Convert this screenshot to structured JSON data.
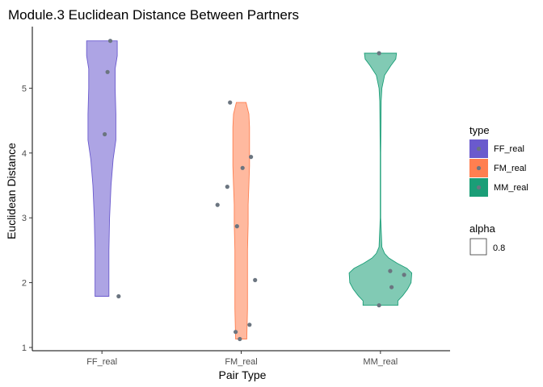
{
  "chart_data": {
    "type": "violin",
    "title": "Module.3 Euclidean Distance Between Partners",
    "xlabel": "Pair Type",
    "ylabel": "Euclidean Distance",
    "categories": [
      "FF_real",
      "FM_real",
      "MM_real"
    ],
    "ylim": [
      0.95,
      5.95
    ],
    "yticks": [
      1,
      2,
      3,
      4,
      5
    ],
    "grid": false,
    "legend_position": "right",
    "legend": {
      "title": "type",
      "entries": [
        "FF_real",
        "FM_real",
        "MM_real"
      ]
    },
    "alpha_legend": {
      "title": "alpha",
      "entries": [
        "0.8"
      ]
    },
    "series": [
      {
        "name": "FF_real",
        "color": "#6a5acd",
        "points": [
          {
            "x": 0.06,
            "y": 5.73
          },
          {
            "x": 0.04,
            "y": 5.25
          },
          {
            "x": 0.02,
            "y": 4.29
          },
          {
            "x": 0.12,
            "y": 1.79
          }
        ]
      },
      {
        "name": "FM_real",
        "color": "#ff7f50",
        "points": [
          {
            "x": -0.08,
            "y": 4.78
          },
          {
            "x": -0.1,
            "y": 3.48
          },
          {
            "x": -0.17,
            "y": 3.2
          },
          {
            "x": 0.07,
            "y": 3.94
          },
          {
            "x": 0.01,
            "y": 3.77
          },
          {
            "x": -0.03,
            "y": 2.87
          },
          {
            "x": 0.1,
            "y": 2.04
          },
          {
            "x": 0.06,
            "y": 1.35
          },
          {
            "x": -0.04,
            "y": 1.24
          },
          {
            "x": -0.01,
            "y": 1.13
          }
        ]
      },
      {
        "name": "MM_real",
        "color": "#1a9e77",
        "points": [
          {
            "x": -0.01,
            "y": 5.54
          },
          {
            "x": 0.07,
            "y": 2.18
          },
          {
            "x": 0.17,
            "y": 2.12
          },
          {
            "x": 0.08,
            "y": 1.93
          },
          {
            "x": -0.01,
            "y": 1.65
          }
        ]
      }
    ],
    "violins": [
      {
        "name": "FF_real",
        "profile": [
          [
            1.79,
            0.1
          ],
          [
            2.5,
            0.1
          ],
          [
            3.0,
            0.11
          ],
          [
            3.5,
            0.13
          ],
          [
            3.9,
            0.16
          ],
          [
            4.2,
            0.2
          ],
          [
            4.6,
            0.2
          ],
          [
            5.0,
            0.19
          ],
          [
            5.3,
            0.19
          ],
          [
            5.5,
            0.22
          ],
          [
            5.73,
            0.22
          ]
        ]
      },
      {
        "name": "FM_real",
        "profile": [
          [
            1.13,
            0.08
          ],
          [
            1.6,
            0.09
          ],
          [
            2.0,
            0.09
          ],
          [
            2.5,
            0.09
          ],
          [
            2.9,
            0.1
          ],
          [
            3.2,
            0.1
          ],
          [
            3.5,
            0.11
          ],
          [
            3.8,
            0.12
          ],
          [
            4.1,
            0.12
          ],
          [
            4.4,
            0.12
          ],
          [
            4.6,
            0.11
          ],
          [
            4.78,
            0.07
          ]
        ]
      },
      {
        "name": "MM_real",
        "profile": [
          [
            1.65,
            0.25
          ],
          [
            1.72,
            0.25
          ],
          [
            1.8,
            0.32
          ],
          [
            1.9,
            0.39
          ],
          [
            2.0,
            0.44
          ],
          [
            2.15,
            0.45
          ],
          [
            2.22,
            0.38
          ],
          [
            2.3,
            0.24
          ],
          [
            2.38,
            0.12
          ],
          [
            2.45,
            0.06
          ],
          [
            2.55,
            0.02
          ],
          [
            3.0,
            0.003
          ],
          [
            4.0,
            0.003
          ],
          [
            4.8,
            0.01
          ],
          [
            5.0,
            0.02
          ],
          [
            5.2,
            0.06
          ],
          [
            5.35,
            0.15
          ],
          [
            5.45,
            0.22
          ],
          [
            5.54,
            0.23
          ]
        ]
      }
    ]
  }
}
